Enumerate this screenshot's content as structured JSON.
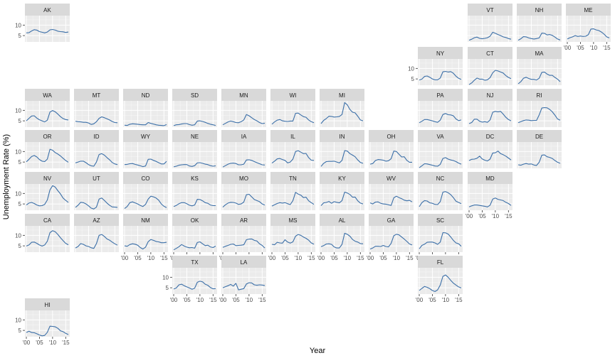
{
  "chart_data": {
    "type": "line",
    "layout": "geo-facet",
    "xlabel": "Year",
    "ylabel": "Unemployment Rate (%)",
    "x_tick_labels": [
      "'00",
      "'05",
      "'10",
      "'15"
    ],
    "x_tick_values": [
      2000,
      2005,
      2010,
      2015
    ],
    "y_tick_labels": [
      "5",
      "10"
    ],
    "y_tick_values": [
      5,
      10
    ],
    "xlim": [
      2000,
      2016
    ],
    "ylim": [
      2,
      14.5
    ],
    "line_color": "#3b6fa8",
    "panel_color": "#ebebeb",
    "strip_color": "#d9d9d9",
    "x": [
      2000,
      2001,
      2002,
      2003,
      2004,
      2005,
      2006,
      2007,
      2008,
      2009,
      2010,
      2011,
      2012,
      2013,
      2014,
      2015,
      2016
    ],
    "panels": [
      {
        "state": "AK",
        "values": [
          6.3,
          6.4,
          7.2,
          7.8,
          7.6,
          6.9,
          6.6,
          6.3,
          6.7,
          7.7,
          7.9,
          7.6,
          7.1,
          6.9,
          6.8,
          6.5,
          6.7
        ]
      },
      {
        "state": "VT",
        "values": [
          2.8,
          3.3,
          4.0,
          4.3,
          3.7,
          3.5,
          3.7,
          4.0,
          4.7,
          6.6,
          6.1,
          5.5,
          5.0,
          4.4,
          4.1,
          3.6,
          3.3
        ]
      },
      {
        "state": "NH",
        "values": [
          2.8,
          3.5,
          4.5,
          4.4,
          3.9,
          3.6,
          3.4,
          3.6,
          3.9,
          6.2,
          6.1,
          5.3,
          5.5,
          5.1,
          4.3,
          3.4,
          2.9
        ]
      },
      {
        "state": "ME",
        "values": [
          3.4,
          4.0,
          4.4,
          5.0,
          4.6,
          4.8,
          4.6,
          4.7,
          5.4,
          8.1,
          8.2,
          7.7,
          7.4,
          6.7,
          5.7,
          4.4,
          3.9
        ]
      },
      {
        "state": "NY",
        "values": [
          4.5,
          4.9,
          6.2,
          6.4,
          5.8,
          5.0,
          4.6,
          4.6,
          5.4,
          8.4,
          8.6,
          8.3,
          8.5,
          7.7,
          6.3,
          5.3,
          4.8
        ]
      },
      {
        "state": "CT",
        "values": [
          2.3,
          3.1,
          4.4,
          5.4,
          4.9,
          4.9,
          4.4,
          4.6,
          5.6,
          7.9,
          9.1,
          8.8,
          8.3,
          7.8,
          6.6,
          5.7,
          5.1
        ]
      },
      {
        "state": "MA",
        "values": [
          2.7,
          3.7,
          5.3,
          5.8,
          5.2,
          4.8,
          4.8,
          4.5,
          5.3,
          8.1,
          8.3,
          7.3,
          6.7,
          6.7,
          5.7,
          4.9,
          3.7
        ]
      },
      {
        "state": "WA",
        "values": [
          5.0,
          6.2,
          7.3,
          7.4,
          6.3,
          5.5,
          5.0,
          4.5,
          5.3,
          9.2,
          9.9,
          9.3,
          8.2,
          7.0,
          6.1,
          5.6,
          5.4
        ]
      },
      {
        "state": "MT",
        "values": [
          4.8,
          4.6,
          4.5,
          4.3,
          4.3,
          4.0,
          3.3,
          3.6,
          4.6,
          6.2,
          6.9,
          6.5,
          6.0,
          5.4,
          4.7,
          4.2,
          4.1
        ]
      },
      {
        "state": "ND",
        "values": [
          2.9,
          2.8,
          3.4,
          3.6,
          3.5,
          3.4,
          3.2,
          3.1,
          3.1,
          4.2,
          3.8,
          3.5,
          3.1,
          2.9,
          2.8,
          2.7,
          3.2
        ]
      },
      {
        "state": "SD",
        "values": [
          2.7,
          3.1,
          3.2,
          3.5,
          3.7,
          3.7,
          3.2,
          2.9,
          3.1,
          4.9,
          5.0,
          4.7,
          4.3,
          3.8,
          3.4,
          3.1,
          2.8
        ]
      },
      {
        "state": "MN",
        "values": [
          3.1,
          3.8,
          4.5,
          4.9,
          4.6,
          4.2,
          4.1,
          4.6,
          5.4,
          8.0,
          7.4,
          6.5,
          5.6,
          5.0,
          4.2,
          3.7,
          3.9
        ]
      },
      {
        "state": "WI",
        "values": [
          3.4,
          4.5,
          5.3,
          5.6,
          5.0,
          4.8,
          4.7,
          4.9,
          4.9,
          8.6,
          8.7,
          7.8,
          7.0,
          6.7,
          5.4,
          4.6,
          4.1
        ]
      },
      {
        "state": "MI",
        "values": [
          3.7,
          5.2,
          6.1,
          7.2,
          7.1,
          6.8,
          6.9,
          7.1,
          8.0,
          13.7,
          12.6,
          10.4,
          9.1,
          8.8,
          7.2,
          5.4,
          5.0
        ]
      },
      {
        "state": "PA",
        "values": [
          4.1,
          4.8,
          5.6,
          5.6,
          5.3,
          5.0,
          4.6,
          4.3,
          5.3,
          8.0,
          8.5,
          7.9,
          7.8,
          7.4,
          5.9,
          5.1,
          5.4
        ]
      },
      {
        "state": "NJ",
        "values": [
          3.7,
          4.2,
          5.8,
          5.8,
          4.8,
          4.4,
          4.6,
          4.3,
          5.4,
          9.1,
          9.5,
          9.3,
          9.5,
          8.2,
          6.7,
          5.6,
          5.0
        ]
      },
      {
        "state": "RI",
        "values": [
          4.1,
          4.6,
          5.1,
          5.4,
          5.3,
          5.1,
          5.2,
          5.2,
          7.8,
          11.1,
          11.3,
          11.2,
          10.4,
          9.3,
          7.7,
          5.9,
          5.3
        ]
      },
      {
        "state": "OR",
        "values": [
          5.1,
          6.3,
          7.6,
          8.1,
          7.4,
          6.2,
          5.4,
          5.2,
          6.4,
          11.1,
          10.6,
          9.5,
          8.8,
          7.9,
          6.8,
          5.7,
          4.9
        ]
      },
      {
        "state": "ID",
        "values": [
          4.6,
          5.0,
          5.4,
          5.4,
          4.7,
          3.8,
          3.2,
          3.0,
          5.0,
          8.6,
          9.0,
          8.3,
          7.1,
          6.1,
          4.8,
          4.1,
          3.8
        ]
      },
      {
        "state": "WY",
        "values": [
          3.8,
          3.9,
          4.2,
          4.3,
          3.9,
          3.6,
          3.2,
          2.8,
          3.1,
          6.3,
          6.4,
          5.8,
          5.3,
          4.7,
          4.1,
          4.1,
          5.3
        ]
      },
      {
        "state": "NE",
        "values": [
          2.7,
          3.0,
          3.5,
          3.7,
          3.8,
          3.8,
          3.1,
          2.9,
          3.3,
          4.6,
          4.7,
          4.4,
          4.0,
          3.8,
          3.3,
          3.0,
          3.2
        ]
      },
      {
        "state": "IA",
        "values": [
          2.6,
          3.3,
          4.0,
          4.4,
          4.5,
          4.3,
          3.7,
          3.7,
          4.0,
          6.0,
          6.1,
          5.8,
          5.2,
          4.7,
          4.2,
          3.7,
          3.6
        ]
      },
      {
        "state": "IL",
        "values": [
          4.5,
          5.4,
          6.5,
          6.7,
          6.2,
          5.8,
          4.6,
          5.0,
          6.4,
          10.0,
          10.4,
          9.7,
          9.0,
          9.1,
          7.1,
          5.9,
          5.8
        ]
      },
      {
        "state": "IN",
        "values": [
          2.9,
          4.4,
          5.2,
          5.3,
          5.3,
          5.4,
          5.0,
          4.6,
          5.8,
          10.4,
          10.2,
          9.0,
          8.3,
          7.5,
          6.0,
          4.8,
          4.4
        ]
      },
      {
        "state": "OH",
        "values": [
          4.0,
          4.3,
          5.7,
          6.2,
          6.1,
          5.9,
          5.4,
          5.6,
          6.6,
          10.2,
          10.0,
          8.7,
          7.4,
          7.5,
          5.8,
          4.9,
          4.9
        ]
      },
      {
        "state": "VA",
        "values": [
          2.3,
          3.2,
          4.2,
          4.1,
          3.8,
          3.5,
          3.1,
          3.0,
          3.9,
          6.7,
          7.1,
          6.4,
          6.0,
          5.7,
          5.2,
          4.5,
          4.0
        ]
      },
      {
        "state": "DC",
        "values": [
          5.7,
          6.3,
          6.4,
          6.8,
          7.8,
          6.5,
          5.9,
          5.5,
          6.4,
          9.3,
          9.4,
          10.2,
          9.0,
          8.5,
          7.8,
          6.9,
          6.0
        ]
      },
      {
        "state": "DE",
        "values": [
          3.7,
          3.5,
          4.0,
          4.3,
          4.0,
          4.1,
          3.6,
          3.4,
          4.9,
          8.3,
          8.4,
          7.5,
          7.2,
          6.7,
          5.7,
          4.9,
          4.4
        ]
      },
      {
        "state": "NV",
        "values": [
          4.5,
          5.4,
          5.7,
          5.2,
          4.5,
          4.1,
          4.2,
          4.8,
          6.9,
          11.7,
          13.7,
          13.0,
          11.3,
          9.8,
          7.8,
          6.7,
          5.7
        ]
      },
      {
        "state": "UT",
        "values": [
          3.4,
          4.4,
          5.8,
          5.6,
          5.0,
          4.1,
          3.0,
          2.6,
          3.5,
          7.3,
          7.8,
          6.7,
          5.4,
          4.4,
          3.6,
          3.5,
          3.4
        ]
      },
      {
        "state": "CO",
        "values": [
          2.8,
          3.8,
          5.6,
          6.0,
          5.5,
          5.0,
          4.3,
          3.8,
          4.8,
          7.3,
          8.7,
          8.4,
          7.8,
          6.8,
          5.0,
          3.9,
          3.3
        ]
      },
      {
        "state": "KS",
        "values": [
          3.8,
          4.3,
          5.1,
          5.6,
          5.6,
          5.1,
          4.4,
          4.1,
          4.5,
          7.2,
          7.1,
          6.5,
          5.6,
          5.3,
          4.5,
          4.2,
          4.2
        ]
      },
      {
        "state": "MO",
        "values": [
          3.5,
          4.6,
          5.4,
          5.8,
          5.7,
          5.4,
          4.8,
          5.0,
          5.9,
          9.4,
          9.6,
          8.4,
          7.1,
          6.6,
          6.1,
          5.0,
          4.5
        ]
      },
      {
        "state": "TN",
        "values": [
          4.0,
          4.6,
          5.2,
          5.6,
          5.4,
          5.6,
          5.1,
          4.7,
          6.6,
          10.5,
          9.7,
          9.2,
          8.0,
          8.2,
          6.5,
          5.6,
          4.8
        ]
      },
      {
        "state": "KY",
        "values": [
          4.2,
          5.5,
          5.7,
          6.2,
          5.3,
          6.1,
          5.8,
          5.5,
          6.6,
          10.6,
          10.2,
          9.5,
          8.2,
          8.3,
          6.5,
          5.4,
          5.0
        ]
      },
      {
        "state": "WV",
        "values": [
          5.5,
          5.0,
          5.9,
          6.0,
          5.3,
          5.0,
          4.9,
          4.6,
          4.3,
          7.9,
          8.7,
          8.0,
          7.5,
          6.8,
          6.5,
          6.7,
          6.0
        ]
      },
      {
        "state": "NC",
        "values": [
          3.7,
          5.6,
          6.6,
          6.4,
          5.5,
          5.3,
          4.8,
          4.7,
          6.1,
          10.6,
          10.9,
          10.3,
          9.4,
          8.0,
          6.3,
          5.7,
          5.1
        ]
      },
      {
        "state": "MD",
        "values": [
          3.6,
          4.1,
          4.5,
          4.5,
          4.3,
          4.1,
          3.9,
          3.6,
          4.4,
          7.3,
          7.8,
          7.2,
          6.9,
          6.6,
          5.8,
          5.2,
          4.3
        ]
      },
      {
        "state": "CA",
        "values": [
          4.9,
          5.4,
          6.7,
          6.8,
          6.2,
          5.4,
          4.9,
          5.4,
          7.2,
          11.3,
          12.2,
          11.7,
          10.4,
          8.9,
          7.5,
          6.2,
          5.5
        ]
      },
      {
        "state": "AZ",
        "values": [
          4.0,
          4.7,
          6.1,
          5.7,
          5.0,
          4.7,
          4.1,
          3.8,
          6.1,
          10.0,
          10.4,
          9.5,
          8.3,
          7.7,
          6.8,
          6.0,
          5.3
        ]
      },
      {
        "state": "NM",
        "values": [
          5.0,
          4.8,
          5.6,
          6.0,
          5.8,
          5.3,
          4.2,
          3.5,
          4.4,
          7.0,
          8.0,
          7.6,
          7.1,
          6.9,
          6.5,
          6.5,
          6.7
        ]
      },
      {
        "state": "OK",
        "values": [
          3.1,
          3.8,
          4.6,
          5.6,
          4.9,
          4.4,
          4.1,
          4.2,
          3.9,
          6.6,
          6.9,
          6.0,
          5.1,
          5.3,
          4.5,
          4.2,
          4.9
        ]
      },
      {
        "state": "AR",
        "values": [
          4.3,
          4.8,
          5.2,
          5.7,
          5.9,
          5.1,
          5.2,
          5.3,
          5.5,
          7.9,
          8.2,
          8.3,
          7.6,
          7.3,
          6.0,
          5.2,
          4.0
        ]
      },
      {
        "state": "MS",
        "values": [
          5.7,
          5.5,
          6.7,
          6.4,
          6.3,
          7.9,
          6.8,
          6.3,
          6.9,
          9.6,
          10.4,
          10.0,
          9.2,
          8.6,
          7.7,
          6.4,
          5.8
        ]
      },
      {
        "state": "AL",
        "values": [
          4.6,
          5.1,
          5.9,
          6.0,
          5.7,
          4.5,
          4.0,
          4.0,
          5.7,
          11.0,
          10.5,
          9.6,
          8.0,
          7.2,
          6.8,
          6.1,
          6.0
        ]
      },
      {
        "state": "GA",
        "values": [
          3.5,
          4.0,
          4.8,
          4.8,
          4.7,
          5.2,
          4.7,
          4.5,
          6.2,
          9.8,
          10.5,
          10.2,
          9.2,
          8.2,
          7.1,
          5.9,
          5.4
        ]
      },
      {
        "state": "SC",
        "values": [
          3.6,
          5.2,
          5.8,
          6.7,
          6.8,
          6.8,
          6.4,
          5.7,
          6.8,
          11.3,
          11.2,
          10.6,
          9.2,
          7.6,
          6.4,
          6.0,
          4.8
        ]
      },
      {
        "state": "TX",
        "values": [
          4.4,
          4.9,
          6.4,
          6.7,
          6.0,
          5.4,
          4.9,
          4.3,
          4.8,
          7.6,
          8.1,
          7.8,
          6.7,
          6.2,
          5.1,
          4.5,
          4.6
        ]
      },
      {
        "state": "LA",
        "values": [
          5.0,
          5.5,
          6.0,
          6.6,
          5.8,
          7.1,
          4.0,
          4.3,
          4.6,
          6.8,
          7.4,
          7.3,
          6.4,
          6.2,
          6.4,
          6.3,
          6.1
        ]
      },
      {
        "state": "FL",
        "values": [
          3.7,
          4.7,
          5.6,
          5.2,
          4.6,
          3.7,
          3.2,
          4.0,
          6.3,
          10.4,
          11.1,
          10.0,
          8.5,
          7.2,
          6.3,
          5.4,
          4.9
        ]
      },
      {
        "state": "HI",
        "values": [
          4.0,
          4.6,
          4.0,
          3.9,
          3.4,
          2.8,
          2.4,
          2.6,
          4.1,
          7.0,
          6.9,
          6.7,
          6.0,
          4.8,
          4.4,
          3.6,
          3.0
        ]
      }
    ]
  }
}
